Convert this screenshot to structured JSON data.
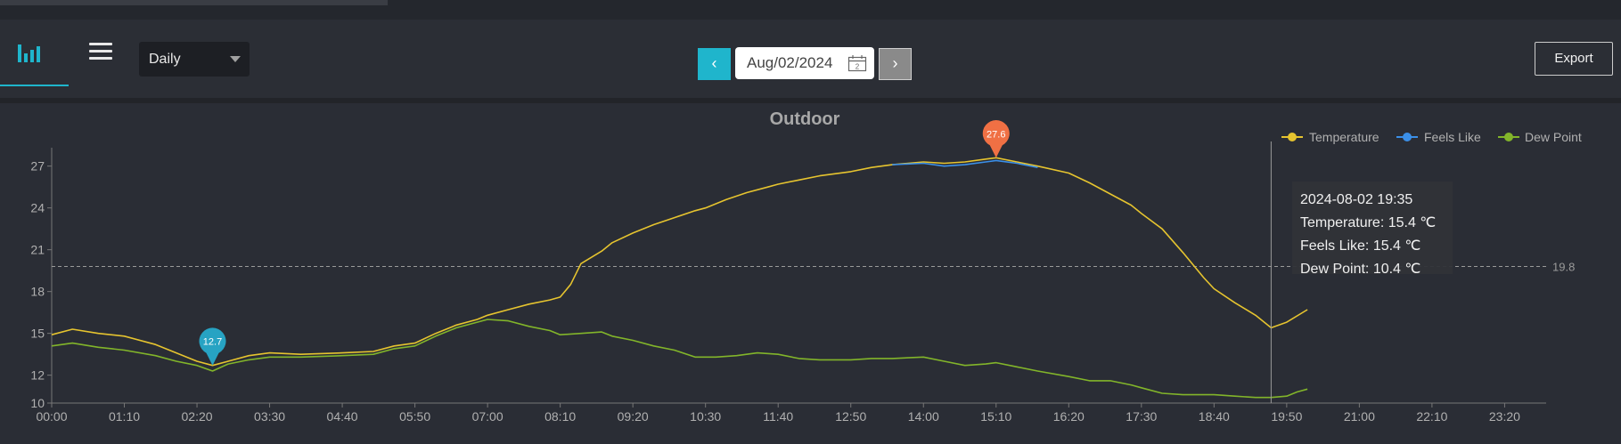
{
  "toolbar": {
    "period": "Daily",
    "date": "Aug/02/2024",
    "calendar_day": "2",
    "prev_label": "‹",
    "next_label": "›",
    "export_label": "Export"
  },
  "icons": {
    "chart_tab": "bar-chart-icon",
    "menu": "hamburger-menu-icon",
    "calendar": "calendar-icon"
  },
  "colors": {
    "accent": "#1fb5cc",
    "temperature": "#e6c42f",
    "feels_like": "#3b8fe8",
    "dew_point": "#82b52a",
    "max_marker": "#f07044",
    "min_marker": "#27a3c3"
  },
  "chart_data": {
    "type": "line",
    "title": "Outdoor",
    "legend_position": "top-right",
    "ylim": [
      10,
      28
    ],
    "yticks": [
      10,
      12,
      15,
      18,
      21,
      24,
      27
    ],
    "xlim": [
      "00:00",
      "24:00"
    ],
    "xtick_labels": [
      "00:00",
      "01:10",
      "02:20",
      "03:30",
      "04:40",
      "05:50",
      "07:00",
      "08:10",
      "09:20",
      "10:30",
      "11:40",
      "12:50",
      "14:00",
      "15:10",
      "16:20",
      "17:30",
      "18:40",
      "19:50",
      "21:00",
      "22:10",
      "23:20"
    ],
    "reference_line": {
      "value": 19.8,
      "label": "19.8"
    },
    "max_marker": {
      "time": "15:10",
      "value": 27.6,
      "label": "27.6"
    },
    "min_marker": {
      "time": "02:35",
      "value": 12.7,
      "label": "12.7"
    },
    "crosshair_time": "19:35",
    "tooltip": {
      "time": "2024-08-02 19:35",
      "lines": [
        "Temperature: 15.4 ℃",
        "Feels Like: 15.4 ℃",
        "Dew Point: 10.4 ℃"
      ]
    },
    "series": [
      {
        "name": "Temperature",
        "color": "#e6c42f",
        "points": [
          [
            "00:00",
            14.9
          ],
          [
            "00:20",
            15.3
          ],
          [
            "00:45",
            15.0
          ],
          [
            "01:10",
            14.8
          ],
          [
            "01:40",
            14.2
          ],
          [
            "02:00",
            13.6
          ],
          [
            "02:20",
            13.0
          ],
          [
            "02:35",
            12.7
          ],
          [
            "02:50",
            13.0
          ],
          [
            "03:10",
            13.4
          ],
          [
            "03:30",
            13.6
          ],
          [
            "04:00",
            13.5
          ],
          [
            "04:40",
            13.6
          ],
          [
            "05:10",
            13.7
          ],
          [
            "05:30",
            14.1
          ],
          [
            "05:50",
            14.3
          ],
          [
            "06:10",
            15.0
          ],
          [
            "06:30",
            15.6
          ],
          [
            "06:50",
            16.0
          ],
          [
            "07:00",
            16.3
          ],
          [
            "07:20",
            16.7
          ],
          [
            "07:40",
            17.1
          ],
          [
            "08:00",
            17.4
          ],
          [
            "08:10",
            17.6
          ],
          [
            "08:20",
            18.5
          ],
          [
            "08:30",
            20.0
          ],
          [
            "08:50",
            20.9
          ],
          [
            "09:00",
            21.5
          ],
          [
            "09:20",
            22.2
          ],
          [
            "09:40",
            22.8
          ],
          [
            "10:00",
            23.3
          ],
          [
            "10:20",
            23.8
          ],
          [
            "10:30",
            24.0
          ],
          [
            "10:50",
            24.6
          ],
          [
            "11:10",
            25.1
          ],
          [
            "11:30",
            25.5
          ],
          [
            "11:40",
            25.7
          ],
          [
            "12:00",
            26.0
          ],
          [
            "12:20",
            26.3
          ],
          [
            "12:50",
            26.6
          ],
          [
            "13:10",
            26.9
          ],
          [
            "13:30",
            27.1
          ],
          [
            "14:00",
            27.3
          ],
          [
            "14:20",
            27.2
          ],
          [
            "14:40",
            27.3
          ],
          [
            "15:00",
            27.5
          ],
          [
            "15:10",
            27.6
          ],
          [
            "15:30",
            27.3
          ],
          [
            "15:50",
            27.0
          ],
          [
            "16:20",
            26.5
          ],
          [
            "16:40",
            25.8
          ],
          [
            "17:00",
            25.0
          ],
          [
            "17:20",
            24.2
          ],
          [
            "17:30",
            23.6
          ],
          [
            "17:50",
            22.5
          ],
          [
            "18:10",
            20.8
          ],
          [
            "18:30",
            19.0
          ],
          [
            "18:40",
            18.2
          ],
          [
            "19:00",
            17.2
          ],
          [
            "19:20",
            16.3
          ],
          [
            "19:35",
            15.4
          ],
          [
            "19:50",
            15.8
          ],
          [
            "20:10",
            16.7
          ]
        ]
      },
      {
        "name": "Feels Like",
        "color": "#3b8fe8",
        "points": [
          [
            "13:30",
            27.1
          ],
          [
            "14:00",
            27.2
          ],
          [
            "14:20",
            27.0
          ],
          [
            "14:40",
            27.1
          ],
          [
            "15:00",
            27.3
          ],
          [
            "15:10",
            27.4
          ],
          [
            "15:30",
            27.2
          ],
          [
            "15:50",
            26.9
          ]
        ]
      },
      {
        "name": "Dew Point",
        "color": "#82b52a",
        "points": [
          [
            "00:00",
            14.1
          ],
          [
            "00:20",
            14.3
          ],
          [
            "00:45",
            14.0
          ],
          [
            "01:10",
            13.8
          ],
          [
            "01:40",
            13.4
          ],
          [
            "02:00",
            13.0
          ],
          [
            "02:20",
            12.7
          ],
          [
            "02:35",
            12.3
          ],
          [
            "02:50",
            12.8
          ],
          [
            "03:10",
            13.1
          ],
          [
            "03:30",
            13.3
          ],
          [
            "04:00",
            13.3
          ],
          [
            "04:40",
            13.4
          ],
          [
            "05:10",
            13.5
          ],
          [
            "05:30",
            13.9
          ],
          [
            "05:50",
            14.1
          ],
          [
            "06:10",
            14.8
          ],
          [
            "06:30",
            15.4
          ],
          [
            "06:50",
            15.8
          ],
          [
            "07:00",
            16.0
          ],
          [
            "07:20",
            15.9
          ],
          [
            "07:40",
            15.5
          ],
          [
            "08:00",
            15.2
          ],
          [
            "08:10",
            14.9
          ],
          [
            "08:30",
            15.0
          ],
          [
            "08:50",
            15.1
          ],
          [
            "09:00",
            14.8
          ],
          [
            "09:20",
            14.5
          ],
          [
            "09:40",
            14.1
          ],
          [
            "10:00",
            13.8
          ],
          [
            "10:20",
            13.3
          ],
          [
            "10:40",
            13.3
          ],
          [
            "11:00",
            13.4
          ],
          [
            "11:20",
            13.6
          ],
          [
            "11:40",
            13.5
          ],
          [
            "12:00",
            13.2
          ],
          [
            "12:20",
            13.1
          ],
          [
            "12:50",
            13.1
          ],
          [
            "13:10",
            13.2
          ],
          [
            "13:30",
            13.2
          ],
          [
            "14:00",
            13.3
          ],
          [
            "14:20",
            13.0
          ],
          [
            "14:40",
            12.7
          ],
          [
            "15:00",
            12.8
          ],
          [
            "15:10",
            12.9
          ],
          [
            "15:30",
            12.6
          ],
          [
            "15:50",
            12.3
          ],
          [
            "16:20",
            11.9
          ],
          [
            "16:40",
            11.6
          ],
          [
            "17:00",
            11.6
          ],
          [
            "17:20",
            11.3
          ],
          [
            "17:30",
            11.1
          ],
          [
            "17:50",
            10.7
          ],
          [
            "18:10",
            10.6
          ],
          [
            "18:40",
            10.6
          ],
          [
            "19:00",
            10.5
          ],
          [
            "19:20",
            10.4
          ],
          [
            "19:35",
            10.4
          ],
          [
            "19:50",
            10.5
          ],
          [
            "20:00",
            10.8
          ],
          [
            "20:10",
            11.0
          ]
        ]
      }
    ]
  }
}
